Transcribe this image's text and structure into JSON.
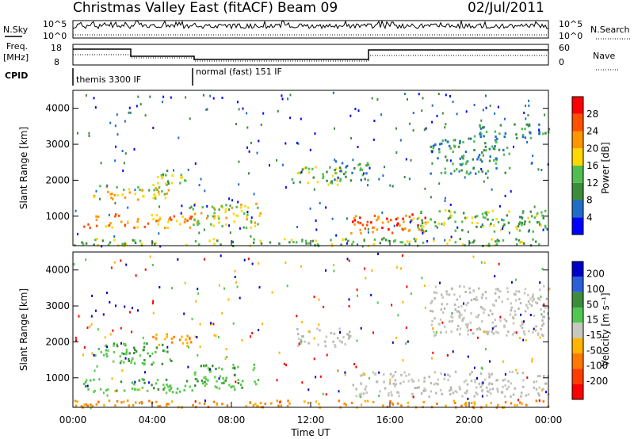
{
  "header": {
    "title": "Christmas Valley East (fitACF)",
    "beam": "Beam 09",
    "date": "02/Jul/2011"
  },
  "top_panels": {
    "nsky_label": "N.Sky",
    "nsky_ticks": [
      "10^5",
      "10^0"
    ],
    "nsearch_label": "N.Search",
    "nsearch_ticks": [
      "10^5",
      "10^0"
    ],
    "freq_label_line1": "Freq.",
    "freq_label_line2": "[MHz]",
    "freq_ticks": [
      "18",
      "8"
    ],
    "nave_label": "Nave",
    "nave_ticks": [
      "60",
      "0"
    ],
    "cpid_label": "CPID",
    "cpid_segments": [
      "themis 3300 IF",
      "normal (fast) 151 IF"
    ]
  },
  "colors": {
    "power_scale": [
      "#0000ff",
      "#1e6ec8",
      "#3c8c3c",
      "#50be50",
      "#ffd700",
      "#ff9600",
      "#ff5000",
      "#ff0000"
    ],
    "velocity_scale": [
      "#0000c8",
      "#2a5fd8",
      "#3c8c3c",
      "#50c850",
      "#c8c8c0",
      "#ffb400",
      "#ff7800",
      "#ff3c00",
      "#ff0000"
    ]
  },
  "chart_data": [
    {
      "type": "heatmap",
      "panel": "power",
      "ylabel": "Slant Range [km]",
      "ylim": [
        180,
        4500
      ],
      "xlim_hours": [
        0,
        24
      ],
      "yticks": [
        "1000",
        "2000",
        "3000",
        "4000"
      ],
      "colorbar": {
        "label": "Power [dB]",
        "ticks": [
          "4",
          "8",
          "12",
          "16",
          "20",
          "24",
          "28"
        ]
      },
      "features": [
        {
          "t": [
            1.0,
            4.8
          ],
          "range": [
            1450,
            1900
          ],
          "level": 4
        },
        {
          "t": [
            4.0,
            6.0
          ],
          "range": [
            1900,
            2300
          ],
          "level": 3
        },
        {
          "t": [
            0.5,
            6.0
          ],
          "range": [
            700,
            1100
          ],
          "level": 5
        },
        {
          "t": [
            6.0,
            9.5
          ],
          "range": [
            700,
            1400
          ],
          "level": 4
        },
        {
          "t": [
            11.0,
            13.5
          ],
          "range": [
            1900,
            2400
          ],
          "level": 3
        },
        {
          "t": [
            13.0,
            15.0
          ],
          "range": [
            2000,
            2600
          ],
          "level": 2
        },
        {
          "t": [
            14.0,
            18.0
          ],
          "range": [
            550,
            1100
          ],
          "level": 6
        },
        {
          "t": [
            17.0,
            24.0
          ],
          "range": [
            600,
            1200
          ],
          "level": 3
        },
        {
          "t": [
            18.0,
            22.0
          ],
          "range": [
            2200,
            3200
          ],
          "level": 2
        },
        {
          "t": [
            20.0,
            24.0
          ],
          "range": [
            3200,
            3600
          ],
          "level": 2
        },
        {
          "t": [
            0.0,
            24.0
          ],
          "range": [
            200,
            400
          ],
          "level": 3
        }
      ]
    },
    {
      "type": "heatmap",
      "panel": "velocity",
      "ylabel": "Slant Range [km]",
      "xlabel": "Time UT",
      "ylim": [
        180,
        4500
      ],
      "xlim_hours": [
        0,
        24
      ],
      "xticks": [
        "00:00",
        "04:00",
        "08:00",
        "12:00",
        "16:00",
        "20:00",
        "00:00"
      ],
      "yticks": [
        "1000",
        "2000",
        "3000",
        "4000"
      ],
      "colorbar": {
        "label": "Velocity [m s⁻¹]",
        "ticks": [
          "200",
          "100",
          "50",
          "15",
          "-15",
          "-50",
          "-100",
          "-200"
        ]
      },
      "features": [
        {
          "t": [
            1.0,
            5.0
          ],
          "range": [
            1400,
            2000
          ],
          "v": "green"
        },
        {
          "t": [
            0.5,
            6.0
          ],
          "range": [
            600,
            1000
          ],
          "v": "green"
        },
        {
          "t": [
            6.0,
            9.5
          ],
          "range": [
            700,
            1400
          ],
          "v": "green"
        },
        {
          "t": [
            4.0,
            6.0
          ],
          "range": [
            1900,
            2300
          ],
          "v": "orange"
        },
        {
          "t": [
            11.0,
            14.0
          ],
          "range": [
            1900,
            2400
          ],
          "v": "gray"
        },
        {
          "t": [
            14.0,
            24.0
          ],
          "range": [
            500,
            1200
          ],
          "v": "gray"
        },
        {
          "t": [
            18.0,
            24.0
          ],
          "range": [
            2200,
            3600
          ],
          "v": "gray"
        },
        {
          "t": [
            0.0,
            24.0
          ],
          "range": [
            200,
            400
          ],
          "v": "orange"
        }
      ]
    }
  ]
}
